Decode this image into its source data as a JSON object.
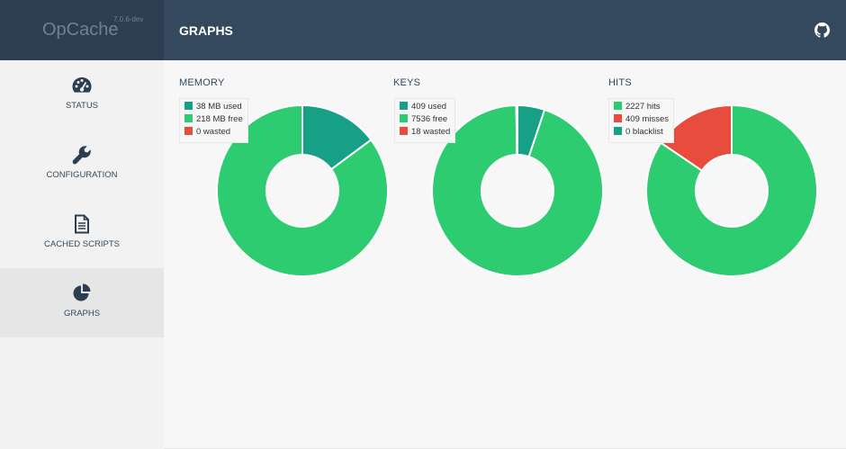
{
  "brand": {
    "name": "OpCache",
    "version": "7.0.6-dev"
  },
  "header": {
    "title": "GRAPHS",
    "github_icon": "github-icon"
  },
  "sidebar": {
    "items": [
      {
        "label": "STATUS",
        "icon": "dashboard-icon",
        "active": false
      },
      {
        "label": "CONFIGURATION",
        "icon": "wrench-icon",
        "active": false
      },
      {
        "label": "CACHED SCRIPTS",
        "icon": "file-icon",
        "active": false
      },
      {
        "label": "GRAPHS",
        "icon": "pie-chart-icon",
        "active": true
      }
    ]
  },
  "colors": {
    "teal": "#16a085",
    "green": "#2ecc71",
    "red": "#e74c3c",
    "topbar": "#34495e",
    "brand_bg": "#2c3e50"
  },
  "charts": {
    "memory": {
      "title": "MEMORY",
      "legend": [
        {
          "label": "38 MB used",
          "color": "#16a085"
        },
        {
          "label": "218 MB free",
          "color": "#2ecc71"
        },
        {
          "label": "0 wasted",
          "color": "#e74c3c"
        }
      ]
    },
    "keys": {
      "title": "KEYS",
      "legend": [
        {
          "label": "409 used",
          "color": "#16a085"
        },
        {
          "label": "7536 free",
          "color": "#2ecc71"
        },
        {
          "label": "18 wasted",
          "color": "#e74c3c"
        }
      ]
    },
    "hits": {
      "title": "HITS",
      "legend": [
        {
          "label": "2227 hits",
          "color": "#2ecc71"
        },
        {
          "label": "409 misses",
          "color": "#e74c3c"
        },
        {
          "label": "0 blacklist",
          "color": "#16a085"
        }
      ]
    }
  },
  "chart_data": [
    {
      "type": "pie",
      "title": "MEMORY",
      "categories": [
        "used",
        "free",
        "wasted"
      ],
      "values": [
        38,
        218,
        0
      ],
      "colors": [
        "#16a085",
        "#2ecc71",
        "#e74c3c"
      ],
      "donut": true
    },
    {
      "type": "pie",
      "title": "KEYS",
      "categories": [
        "used",
        "free",
        "wasted"
      ],
      "values": [
        409,
        7536,
        18
      ],
      "colors": [
        "#16a085",
        "#2ecc71",
        "#e74c3c"
      ],
      "donut": true
    },
    {
      "type": "pie",
      "title": "HITS",
      "categories": [
        "hits",
        "misses",
        "blacklist"
      ],
      "values": [
        2227,
        409,
        0
      ],
      "colors": [
        "#2ecc71",
        "#e74c3c",
        "#16a085"
      ],
      "donut": true
    }
  ]
}
